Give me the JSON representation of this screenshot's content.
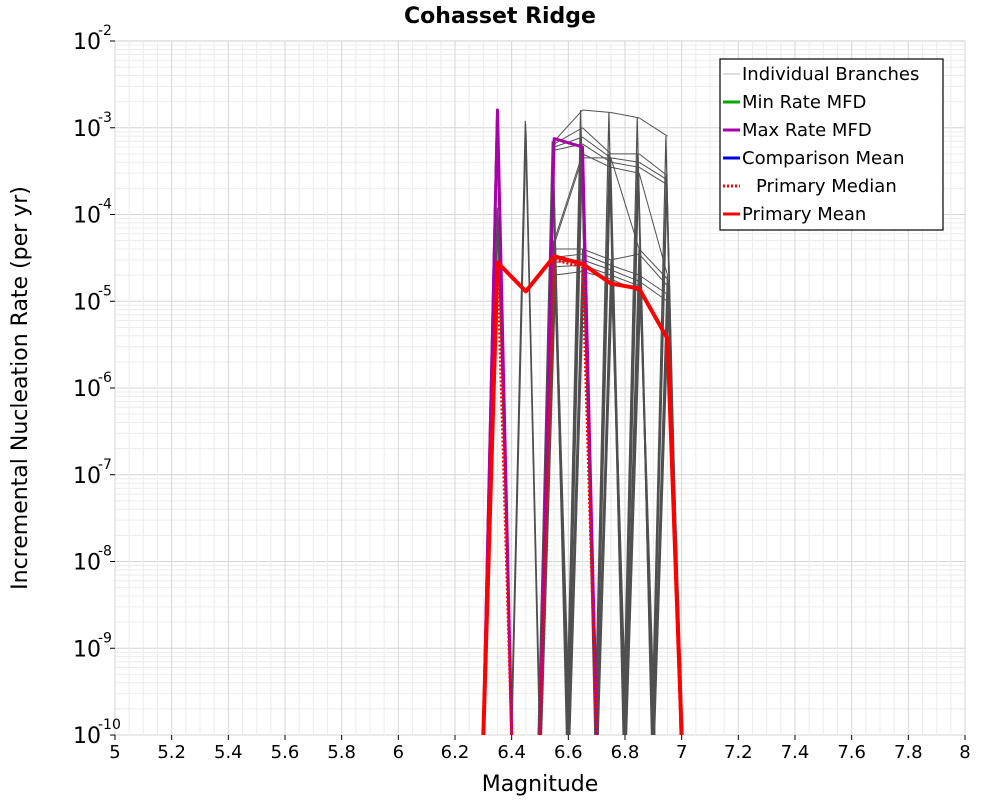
{
  "chart_data": {
    "type": "line",
    "title": "Cohasset Ridge",
    "xlabel": "Magnitude",
    "ylabel": "Incremental Nucleation Rate (per yr)",
    "xlim": [
      5,
      8
    ],
    "ylim": [
      1e-10,
      0.01
    ],
    "y_scale": "log",
    "grid": true,
    "legend_position": "top-right",
    "x_ticks": [
      "5",
      "5.2",
      "5.4",
      "5.6",
      "5.8",
      "6",
      "6.2",
      "6.4",
      "6.6",
      "6.8",
      "7",
      "7.2",
      "7.4",
      "7.6",
      "7.8",
      "8"
    ],
    "y_ticks": [
      {
        "base": "10",
        "exp": "-10"
      },
      {
        "base": "10",
        "exp": "-9"
      },
      {
        "base": "10",
        "exp": "-8"
      },
      {
        "base": "10",
        "exp": "-7"
      },
      {
        "base": "10",
        "exp": "-6"
      },
      {
        "base": "10",
        "exp": "-5"
      },
      {
        "base": "10",
        "exp": "-4"
      },
      {
        "base": "10",
        "exp": "-3"
      },
      {
        "base": "10",
        "exp": "-2"
      }
    ],
    "legend": [
      {
        "label": "Individual Branches",
        "color": "#bbbbbb",
        "style": "solid"
      },
      {
        "label": "Min Rate MFD",
        "color": "#00aa00",
        "style": "solid"
      },
      {
        "label": "Max Rate MFD",
        "color": "#aa00aa",
        "style": "solid"
      },
      {
        "label": "Comparison Mean",
        "color": "#0000dd",
        "style": "solid"
      },
      {
        "label": "Primary Median",
        "color": "#ff0000",
        "style": "dotted"
      },
      {
        "label": "Primary Mean",
        "color": "#ff0000",
        "style": "solid"
      }
    ],
    "branch_color": "#505050",
    "branch_groups": [
      {
        "m": 6.35,
        "values": [
          0.0015,
          0.0013,
          0.00012,
          0.0001,
          8e-05
        ]
      },
      {
        "m": 6.45,
        "values": [
          0.0012,
          0.0011,
          0.0009
        ]
      },
      {
        "m": 6.55,
        "values": [
          0.0007,
          0.00065,
          0.0006,
          0.00055,
          5e-05,
          4.5e-05,
          4e-05,
          3.2e-05,
          2.8e-05,
          2.5e-05,
          2e-05
        ]
      },
      {
        "m": 6.65,
        "values": [
          0.0016,
          0.001,
          0.00078,
          0.00065,
          0.0005,
          0.00045,
          4e-05,
          3.5e-05,
          3e-05,
          2.6e-05,
          2.2e-05
        ]
      },
      {
        "m": 6.75,
        "values": [
          0.0015,
          0.0005,
          0.00045,
          0.0004,
          0.00035,
          0.00045,
          3e-05,
          2.6e-05,
          2.3e-05,
          2e-05,
          1.8e-05
        ]
      },
      {
        "m": 6.85,
        "values": [
          0.0013,
          0.0005,
          0.0004,
          0.00035,
          0.0003,
          4e-05,
          3.5e-05,
          2e-05,
          1.7e-05,
          1.5e-05,
          1.3e-05
        ]
      },
      {
        "m": 6.95,
        "values": [
          0.0008,
          0.00028,
          0.00025,
          0.00022,
          2e-05,
          1.8e-05,
          1.5e-05,
          1.2e-05,
          1e-05
        ]
      }
    ],
    "series": [
      {
        "name": "Max Rate MFD",
        "color": "#aa00aa",
        "x": [
          6.3,
          6.35,
          6.4
        ],
        "y": [
          1e-10,
          0.0016,
          1e-10
        ]
      },
      {
        "name": "Max Rate MFD",
        "color": "#aa00aa",
        "x": [
          6.5,
          6.55,
          6.65,
          6.7
        ],
        "y": [
          1e-10,
          0.00075,
          0.0006,
          1e-10
        ]
      },
      {
        "name": "Primary Median",
        "color": "#ff0000",
        "x": [
          6.3,
          6.35,
          6.4
        ],
        "y": [
          1e-10,
          3e-05,
          1e-10
        ]
      },
      {
        "name": "Primary Median",
        "color": "#ff0000",
        "x": [
          6.5,
          6.55,
          6.65,
          6.7
        ],
        "y": [
          1e-10,
          3e-05,
          2.5e-05,
          1e-10
        ]
      },
      {
        "name": "Primary Mean",
        "color": "#ff0000",
        "x": [
          6.3,
          6.35,
          6.45,
          6.55,
          6.65,
          6.75,
          6.85,
          6.95,
          7.0
        ],
        "y": [
          1e-10,
          2.8e-05,
          1.3e-05,
          3.3e-05,
          2.7e-05,
          1.6e-05,
          1.4e-05,
          3.7e-06,
          1e-10
        ]
      }
    ]
  }
}
